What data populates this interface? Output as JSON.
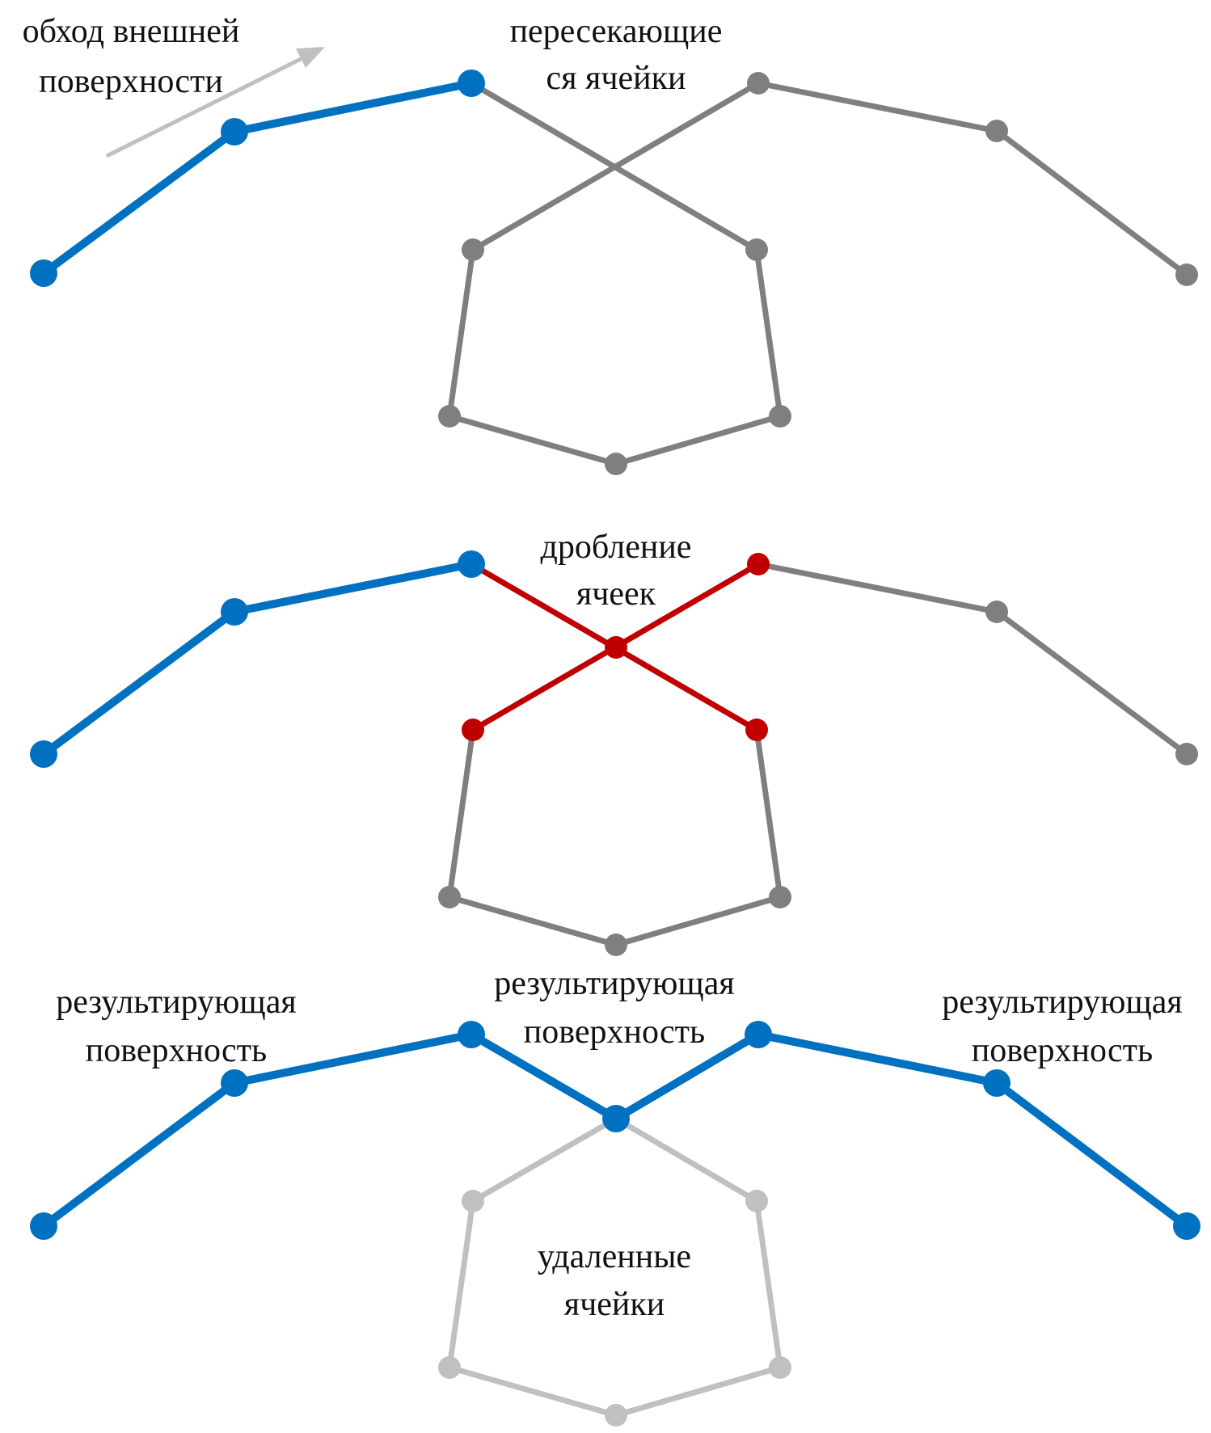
{
  "colors": {
    "surface": "#0070c0",
    "cell": "#7f7f7f",
    "split": "#c00000",
    "removed": "#c0c0c0",
    "arrow": "#c0c0c0",
    "text": "#111111"
  },
  "panels": {
    "top": {
      "label_traverse": [
        "обход внешней",
        "поверхности"
      ],
      "label_intersect": [
        "пересекающие",
        "ся ячейки"
      ]
    },
    "middle": {
      "label_split": [
        "дробление",
        "ячеек"
      ]
    },
    "bottom": {
      "label_result_left": [
        "результирующая",
        "поверхность"
      ],
      "label_result_center": [
        "результирующая",
        "поверхность"
      ],
      "label_result_right": [
        "результирующая",
        "поверхность"
      ],
      "label_removed": [
        "удаленные",
        "ячейки"
      ]
    }
  }
}
